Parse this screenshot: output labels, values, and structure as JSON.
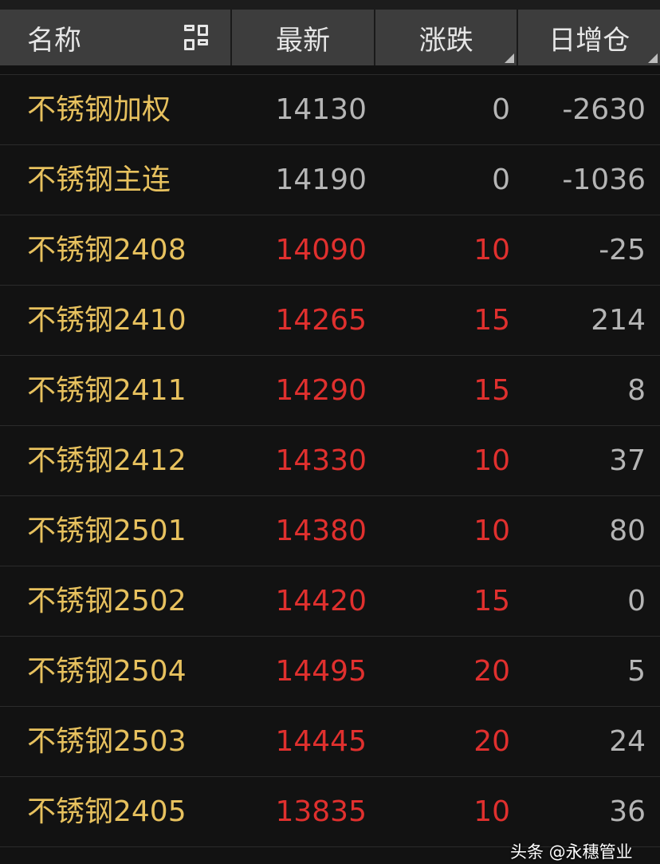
{
  "header": {
    "name": "名称",
    "latest": "最新",
    "change": "涨跌",
    "oi_change": "日增仓",
    "layout_icon": "grid-layout-icon"
  },
  "colors": {
    "name": "#e7c15e",
    "neutral": "#b5b5b5",
    "up": "#e0302e"
  },
  "rows": [
    {
      "name": "不锈钢加权",
      "latest": "14130",
      "change": "0",
      "oi": "-2630",
      "dir": "flat"
    },
    {
      "name": "不锈钢主连",
      "latest": "14190",
      "change": "0",
      "oi": "-1036",
      "dir": "flat"
    },
    {
      "name": "不锈钢2408",
      "latest": "14090",
      "change": "10",
      "oi": "-25",
      "dir": "up"
    },
    {
      "name": "不锈钢2410",
      "latest": "14265",
      "change": "15",
      "oi": "214",
      "dir": "up"
    },
    {
      "name": "不锈钢2411",
      "latest": "14290",
      "change": "15",
      "oi": "8",
      "dir": "up"
    },
    {
      "name": "不锈钢2412",
      "latest": "14330",
      "change": "10",
      "oi": "37",
      "dir": "up"
    },
    {
      "name": "不锈钢2501",
      "latest": "14380",
      "change": "10",
      "oi": "80",
      "dir": "up"
    },
    {
      "name": "不锈钢2502",
      "latest": "14420",
      "change": "15",
      "oi": "0",
      "dir": "up"
    },
    {
      "name": "不锈钢2504",
      "latest": "14495",
      "change": "20",
      "oi": "5",
      "dir": "up"
    },
    {
      "name": "不锈钢2503",
      "latest": "14445",
      "change": "20",
      "oi": "24",
      "dir": "up"
    },
    {
      "name": "不锈钢2405",
      "latest": "13835",
      "change": "10",
      "oi": "36",
      "dir": "up"
    }
  ],
  "watermark": "头条 @永穗管业"
}
